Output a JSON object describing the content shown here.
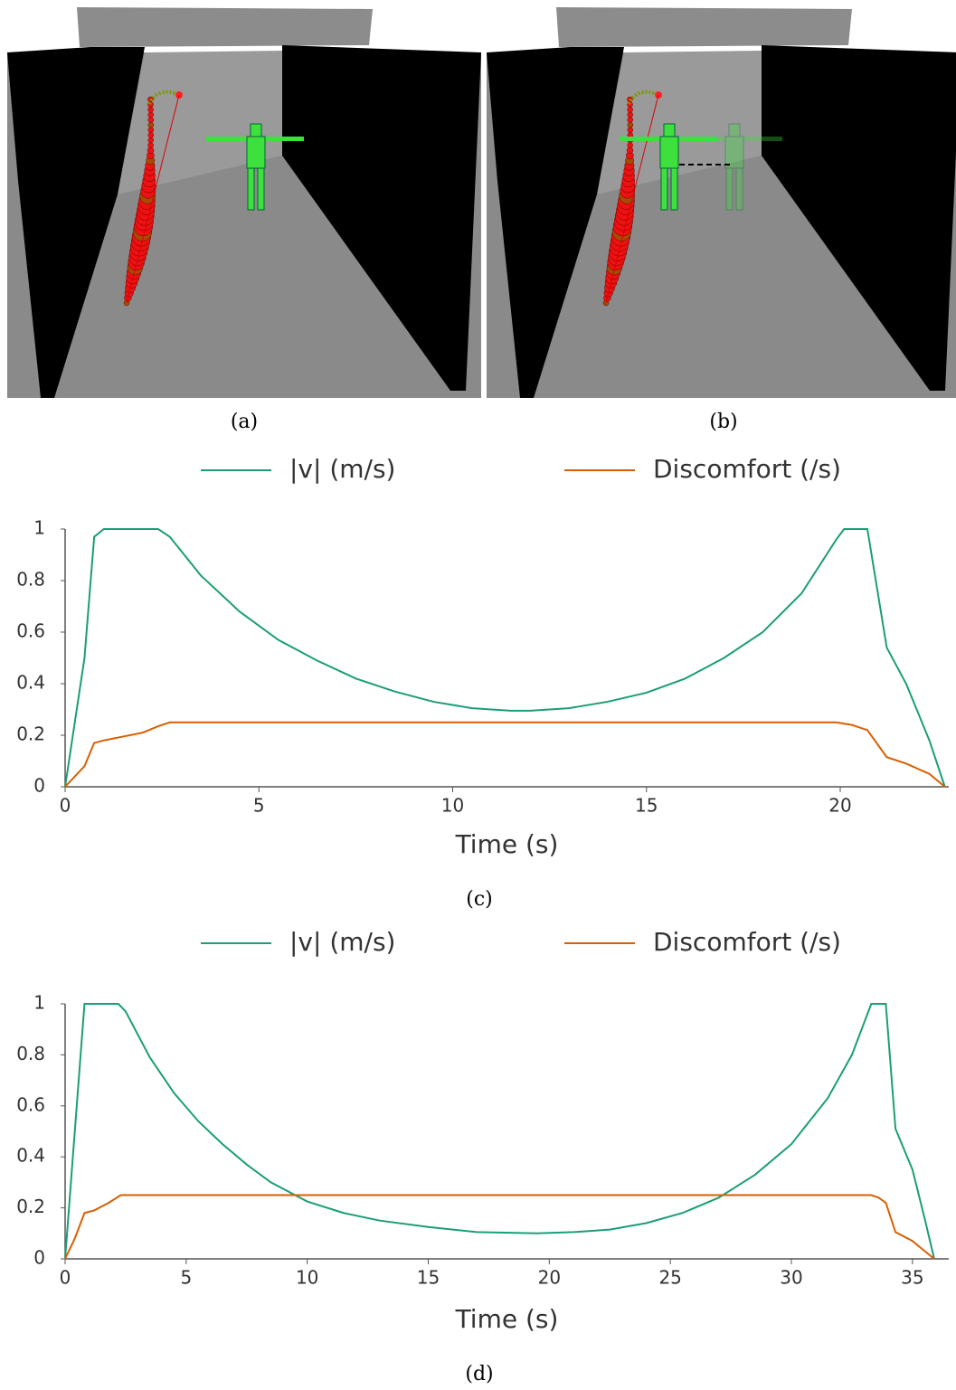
{
  "panels": [
    {
      "caption": "(a)"
    },
    {
      "caption": "(b)"
    }
  ],
  "chart_data": [
    {
      "type": "line",
      "caption": "(c)",
      "xlabel": "Time (s)",
      "xlim": [
        0,
        22.8
      ],
      "ylim": [
        0,
        1
      ],
      "xticks": [
        0,
        5,
        10,
        15,
        20
      ],
      "yticks": [
        0,
        0.2,
        0.4,
        0.6,
        0.8,
        1
      ],
      "series": [
        {
          "name": "|v| (m/s)",
          "color": "#1b9e77",
          "x": [
            0,
            0.5,
            0.75,
            1,
            2.4,
            2.7,
            3.5,
            4.5,
            5.5,
            6.5,
            7.5,
            8.5,
            9.5,
            10.5,
            11.5,
            12,
            13,
            14,
            15,
            16,
            17,
            18,
            19,
            19.9,
            20.1,
            20.7,
            21.2,
            21.7,
            22.3,
            22.7
          ],
          "values": [
            0,
            0.5,
            0.97,
            1,
            1,
            0.97,
            0.82,
            0.68,
            0.57,
            0.49,
            0.42,
            0.37,
            0.33,
            0.305,
            0.295,
            0.295,
            0.305,
            0.33,
            0.365,
            0.42,
            0.5,
            0.6,
            0.75,
            0.96,
            1,
            1,
            0.54,
            0.4,
            0.18,
            0
          ]
        },
        {
          "name": "Discomfort (/s)",
          "color": "#d95f02",
          "x": [
            0,
            0.5,
            0.75,
            1,
            1.5,
            2,
            2.4,
            2.7,
            19.9,
            20.3,
            20.7,
            21.2,
            21.7,
            22.3,
            22.7
          ],
          "values": [
            0,
            0.08,
            0.17,
            0.18,
            0.195,
            0.21,
            0.235,
            0.25,
            0.25,
            0.24,
            0.22,
            0.115,
            0.09,
            0.05,
            0
          ]
        }
      ]
    },
    {
      "type": "line",
      "caption": "(d)",
      "xlabel": "Time (s)",
      "xlim": [
        0,
        36.5
      ],
      "ylim": [
        0,
        1
      ],
      "xticks": [
        0,
        5,
        10,
        15,
        20,
        25,
        30,
        35
      ],
      "yticks": [
        0,
        0.2,
        0.4,
        0.6,
        0.8,
        1
      ],
      "series": [
        {
          "name": "|v| (m/s)",
          "color": "#1b9e77",
          "x": [
            0,
            0.4,
            0.8,
            2.2,
            2.5,
            3.5,
            4.5,
            5.5,
            6.5,
            7.5,
            8.5,
            10,
            11.5,
            13,
            15,
            17,
            19.5,
            21,
            22.5,
            24,
            25.5,
            27,
            28.5,
            30,
            31.5,
            32.5,
            33.3,
            33.9,
            34.3,
            35,
            35.5,
            35.9
          ],
          "values": [
            0,
            0.5,
            1,
            1,
            0.97,
            0.79,
            0.65,
            0.54,
            0.45,
            0.37,
            0.3,
            0.225,
            0.18,
            0.15,
            0.125,
            0.105,
            0.1,
            0.105,
            0.115,
            0.14,
            0.18,
            0.24,
            0.33,
            0.45,
            0.63,
            0.8,
            1,
            1,
            0.51,
            0.35,
            0.16,
            0
          ]
        },
        {
          "name": "Discomfort (/s)",
          "color": "#d95f02",
          "x": [
            0,
            0.4,
            0.8,
            1.2,
            1.8,
            2.3,
            33.3,
            33.6,
            33.9,
            34.3,
            35,
            35.9
          ],
          "values": [
            0,
            0.08,
            0.18,
            0.19,
            0.22,
            0.25,
            0.25,
            0.24,
            0.22,
            0.105,
            0.07,
            0
          ]
        }
      ]
    }
  ]
}
